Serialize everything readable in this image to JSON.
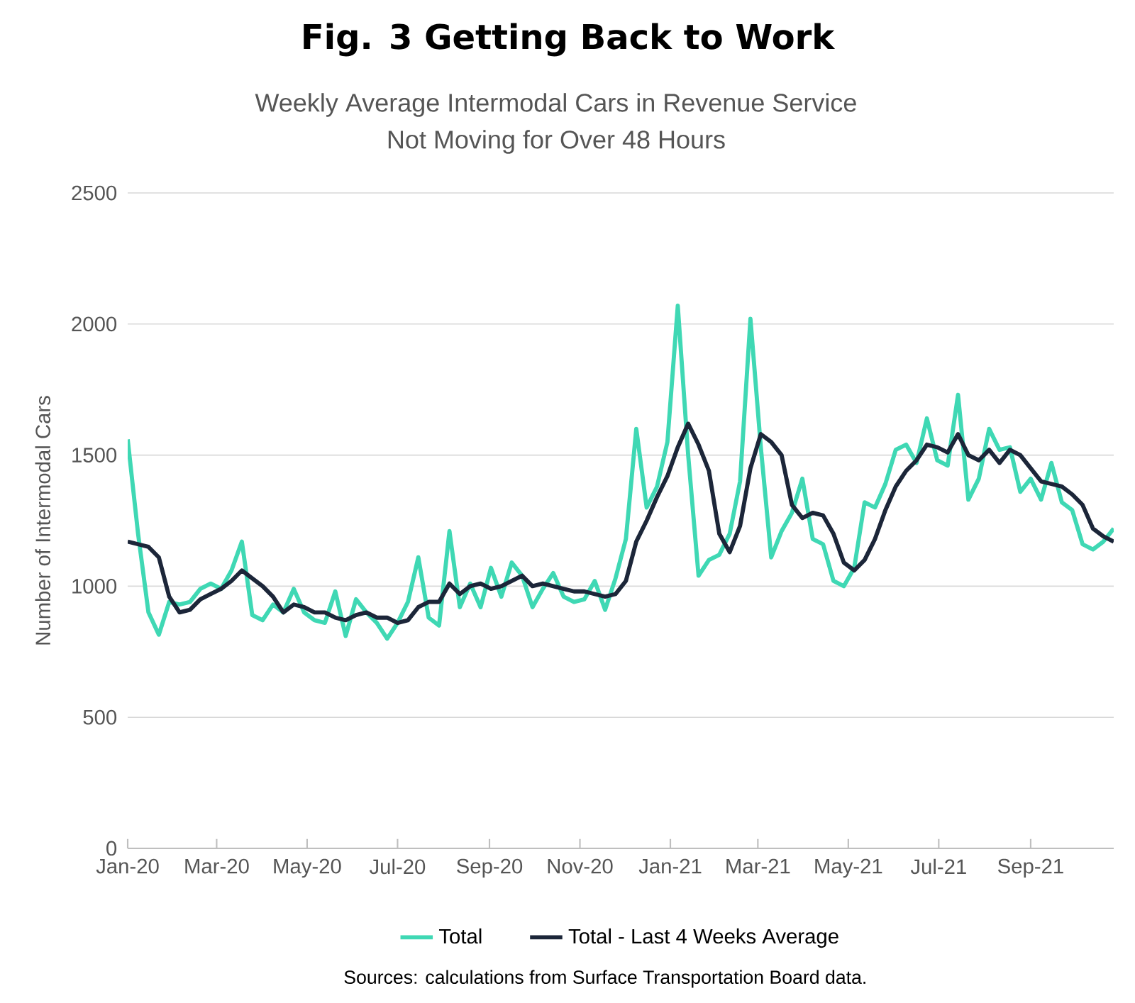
{
  "chart_data": {
    "type": "line",
    "title": "Fig. 3 Getting Back to Work",
    "subtitle": "Weekly Average Intermodal Cars in Revenue Service Not Moving for Over 48 Hours",
    "ylabel": "Number of Intermodal Cars",
    "annotations": [
      "Sources: calculations from Surface Transportation Board data."
    ],
    "x": [
      "2020-01-01",
      "2020-01-08",
      "2020-01-15",
      "2020-01-22",
      "2020-01-29",
      "2020-02-05",
      "2020-02-12",
      "2020-02-19",
      "2020-02-26",
      "2020-03-04",
      "2020-03-11",
      "2020-03-18",
      "2020-03-25",
      "2020-04-01",
      "2020-04-08",
      "2020-04-15",
      "2020-04-22",
      "2020-04-29",
      "2020-05-06",
      "2020-05-13",
      "2020-05-20",
      "2020-05-27",
      "2020-06-03",
      "2020-06-10",
      "2020-06-17",
      "2020-06-24",
      "2020-07-01",
      "2020-07-08",
      "2020-07-15",
      "2020-07-22",
      "2020-07-29",
      "2020-08-05",
      "2020-08-12",
      "2020-08-19",
      "2020-08-26",
      "2020-09-02",
      "2020-09-09",
      "2020-09-16",
      "2020-09-23",
      "2020-09-30",
      "2020-10-07",
      "2020-10-14",
      "2020-10-21",
      "2020-10-28",
      "2020-11-04",
      "2020-11-11",
      "2020-11-18",
      "2020-11-25",
      "2020-12-02",
      "2020-12-09",
      "2020-12-16",
      "2020-12-23",
      "2020-12-30",
      "2021-01-06",
      "2021-01-13",
      "2021-01-20",
      "2021-01-27",
      "2021-02-03",
      "2021-02-10",
      "2021-02-17",
      "2021-02-24",
      "2021-03-03",
      "2021-03-10",
      "2021-03-17",
      "2021-03-24",
      "2021-03-31",
      "2021-04-07",
      "2021-04-14",
      "2021-04-21",
      "2021-04-28",
      "2021-05-05",
      "2021-05-12",
      "2021-05-19",
      "2021-05-26",
      "2021-06-02",
      "2021-06-09",
      "2021-06-16",
      "2021-06-23",
      "2021-06-30",
      "2021-07-07",
      "2021-07-14",
      "2021-07-21",
      "2021-07-28",
      "2021-08-04",
      "2021-08-11",
      "2021-08-18",
      "2021-08-25",
      "2021-09-01",
      "2021-09-08",
      "2021-09-15",
      "2021-09-22",
      "2021-09-29",
      "2021-10-06",
      "2021-10-13",
      "2021-10-20",
      "2021-10-27"
    ],
    "series": [
      {
        "name": "Total",
        "color": "#3fd8b4",
        "values": [
          1560,
          1200,
          900,
          815,
          940,
          930,
          940,
          990,
          1010,
          990,
          1060,
          1170,
          890,
          870,
          930,
          900,
          990,
          900,
          870,
          860,
          980,
          810,
          950,
          900,
          860,
          800,
          860,
          940,
          1110,
          880,
          850,
          1210,
          920,
          1010,
          920,
          1070,
          960,
          1090,
          1040,
          920,
          990,
          1050,
          960,
          940,
          950,
          1020,
          910,
          1030,
          1180,
          1600,
          1300,
          1380,
          1550,
          2070,
          1500,
          1040,
          1100,
          1120,
          1200,
          1400,
          2020,
          1530,
          1110,
          1210,
          1280,
          1410,
          1180,
          1160,
          1020,
          1000,
          1070,
          1320,
          1300,
          1390,
          1520,
          1540,
          1470,
          1640,
          1480,
          1460,
          1730,
          1330,
          1410,
          1600,
          1520,
          1530,
          1360,
          1410,
          1330,
          1470,
          1320,
          1290,
          1160,
          1140,
          1170,
          1220
        ]
      },
      {
        "name": "Total -  Last 4 Weeks Average",
        "color": "#1c2639",
        "values": [
          1170,
          1160,
          1150,
          1110,
          960,
          900,
          910,
          950,
          970,
          990,
          1020,
          1060,
          1030,
          1000,
          960,
          900,
          930,
          920,
          900,
          900,
          880,
          870,
          890,
          900,
          880,
          880,
          860,
          870,
          920,
          940,
          940,
          1010,
          970,
          1000,
          1010,
          990,
          1000,
          1020,
          1040,
          1000,
          1010,
          1000,
          990,
          980,
          980,
          970,
          960,
          970,
          1020,
          1170,
          1250,
          1340,
          1420,
          1530,
          1620,
          1540,
          1440,
          1200,
          1130,
          1230,
          1450,
          1580,
          1550,
          1500,
          1310,
          1260,
          1280,
          1270,
          1200,
          1090,
          1060,
          1100,
          1180,
          1290,
          1380,
          1440,
          1480,
          1540,
          1530,
          1510,
          1580,
          1500,
          1480,
          1520,
          1470,
          1520,
          1500,
          1450,
          1400,
          1390,
          1380,
          1350,
          1310,
          1220,
          1190,
          1170
        ]
      }
    ],
    "xlim": [
      "2020-01-01",
      "2021-10-27"
    ],
    "xticks": [
      {
        "value": "2020-01-01",
        "label": "Jan-20"
      },
      {
        "value": "2020-03-01",
        "label": "Mar-20"
      },
      {
        "value": "2020-05-01",
        "label": "May-20"
      },
      {
        "value": "2020-07-01",
        "label": "Jul-20"
      },
      {
        "value": "2020-09-01",
        "label": "Sep-20"
      },
      {
        "value": "2020-11-01",
        "label": "Nov-20"
      },
      {
        "value": "2021-01-01",
        "label": "Jan-21"
      },
      {
        "value": "2021-03-01",
        "label": "Mar-21"
      },
      {
        "value": "2021-05-01",
        "label": "May-21"
      },
      {
        "value": "2021-07-01",
        "label": "Jul-21"
      },
      {
        "value": "2021-09-01",
        "label": "Sep-21"
      }
    ],
    "ylim": [
      0,
      2500
    ],
    "yticks": [
      0,
      500,
      1000,
      1500,
      2000,
      2500
    ],
    "grid": "y",
    "legend": "bottom",
    "marker": "none",
    "line_style": "solid"
  }
}
